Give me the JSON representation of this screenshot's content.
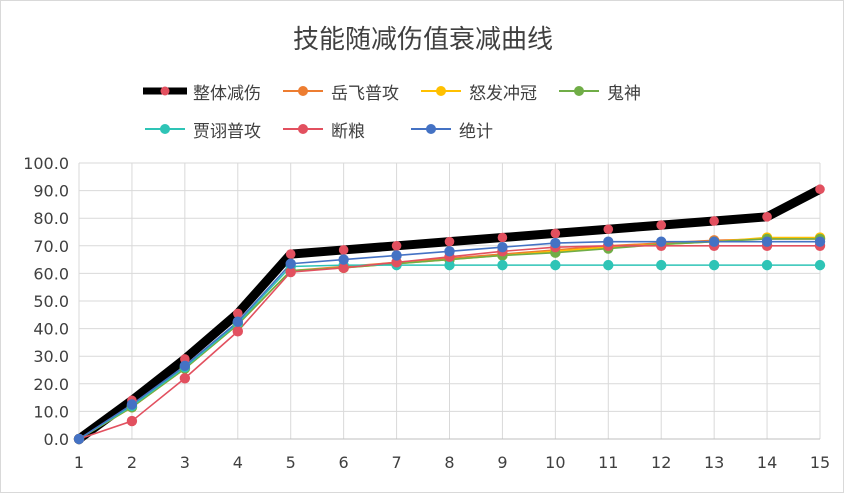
{
  "chart_data": {
    "type": "line",
    "title": "技能随减伤值衰减曲线",
    "x": [
      1,
      2,
      3,
      4,
      5,
      6,
      7,
      8,
      9,
      10,
      11,
      12,
      13,
      14,
      15
    ],
    "ylim": [
      0,
      100
    ],
    "yticks": [
      "0.0",
      "10.0",
      "20.0",
      "30.0",
      "40.0",
      "50.0",
      "60.0",
      "70.0",
      "80.0",
      "90.0",
      "100.0"
    ],
    "grid": true,
    "legend_position": "top",
    "series": [
      {
        "name": "整体减伤",
        "color": "#000000",
        "marker_color": "#e2505f",
        "values": [
          0,
          14,
          29,
          45.5,
          67,
          68.5,
          70,
          71.5,
          73,
          74.5,
          76,
          77.5,
          79,
          80.5,
          90.5
        ]
      },
      {
        "name": "岳飞普攻",
        "color": "#ed7d31",
        "marker_color": "#ed7d31",
        "values": [
          0,
          11.5,
          25.5,
          41.5,
          61,
          62.5,
          64,
          65.5,
          67,
          68.5,
          70,
          71,
          72,
          72.5,
          72.5
        ]
      },
      {
        "name": "怒发冲冠",
        "color": "#ffc000",
        "marker_color": "#ffc000",
        "values": [
          0,
          11.5,
          25.5,
          41.5,
          61,
          62,
          63.5,
          65,
          66.5,
          68,
          69.5,
          70.5,
          71.5,
          73,
          73
        ]
      },
      {
        "name": "鬼神",
        "color": "#70ad47",
        "marker_color": "#70ad47",
        "values": [
          0,
          11.5,
          25.5,
          41.5,
          61,
          62,
          63.5,
          65,
          66.5,
          67.5,
          69,
          70.5,
          71.5,
          72.5,
          72.5
        ]
      },
      {
        "name": "贾诩普攻",
        "color": "#2ec4b6",
        "marker_color": "#2ec4b6",
        "values": [
          0,
          12,
          26,
          42,
          62.5,
          63,
          63,
          63,
          63,
          63,
          63,
          63,
          63,
          63,
          63
        ]
      },
      {
        "name": "断粮",
        "color": "#e2505f",
        "marker_color": "#e2505f",
        "values": [
          0,
          6.5,
          22,
          39,
          60.5,
          62,
          64,
          66,
          68,
          69.5,
          70,
          70,
          70,
          70,
          70
        ]
      },
      {
        "name": "绝计",
        "color": "#4472c4",
        "marker_color": "#4472c4",
        "values": [
          0,
          12.5,
          26.5,
          42.5,
          63.5,
          65,
          66.5,
          68,
          69.5,
          71,
          71.5,
          71.5,
          71.5,
          71.5,
          71.5
        ]
      }
    ]
  }
}
